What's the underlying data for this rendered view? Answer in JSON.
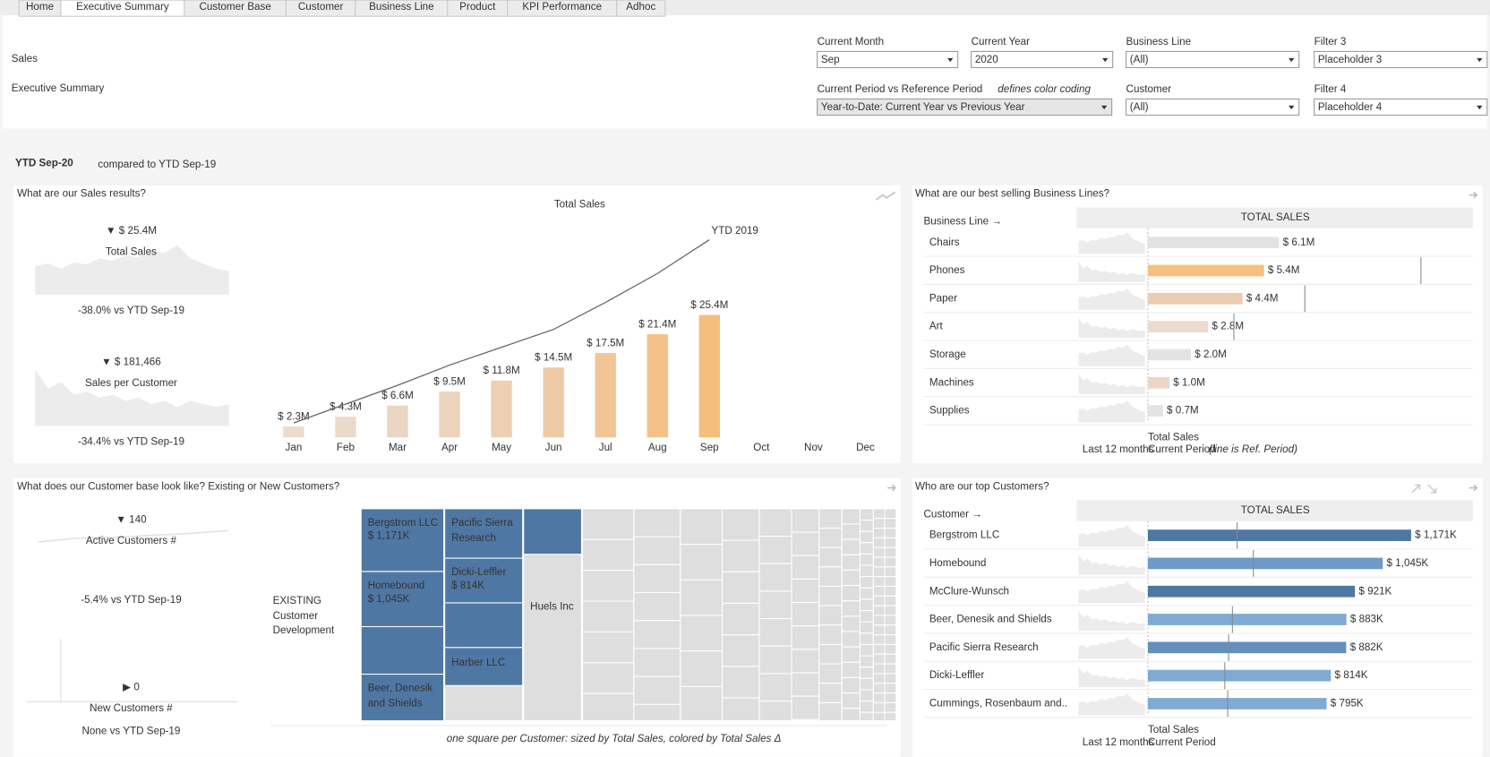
{
  "tabs": [
    "Home",
    "Executive Summary",
    "Customer Base",
    "Customer",
    "Business Line",
    "Product",
    "KPI Performance",
    "Adhoc"
  ],
  "active_tab": 1,
  "header": {
    "breadcrumb": "Sales",
    "title": "Executive Summary"
  },
  "filters": [
    {
      "label": "Current Month",
      "value": "Sep"
    },
    {
      "label": "Current Year",
      "value": "2020"
    },
    {
      "label": "Business Line",
      "value": "(All)"
    },
    {
      "label": "Filter 3",
      "value": "Placeholder 3"
    },
    {
      "label": "Current Period vs Reference Period",
      "note": "defines color coding",
      "value": "Year-to-Date: Current Year vs Previous Year"
    },
    {
      "label": "Customer",
      "value": "(All)"
    },
    {
      "label": "Filter 4",
      "value": "Placeholder 4"
    }
  ],
  "period": {
    "current": "YTD Sep-20",
    "compared": "compared to YTD Sep-19"
  },
  "sales_panel": {
    "title": "What are our Sales results?",
    "kpis": [
      {
        "arrow": "▼",
        "value": "$ 25.4M",
        "label": "Total Sales",
        "delta": "-38.0% vs YTD Sep-19"
      },
      {
        "arrow": "▼",
        "value": "$ 181,466",
        "label": "Sales per Customer",
        "delta": "-34.4% vs YTD Sep-19"
      }
    ],
    "chart_data": {
      "type": "bar",
      "title": "Total Sales",
      "categories": [
        "Jan",
        "Feb",
        "Mar",
        "Apr",
        "May",
        "Jun",
        "Jul",
        "Aug",
        "Sep",
        "Oct",
        "Nov",
        "Dec"
      ],
      "values": [
        2.3,
        4.3,
        6.6,
        9.5,
        11.8,
        14.5,
        17.5,
        21.4,
        25.4,
        null,
        null,
        null
      ],
      "value_labels": [
        "$ 2.3M",
        "$ 4.3M",
        "$ 6.6M",
        "$ 9.5M",
        "$ 11.8M",
        "$ 14.5M",
        "$ 17.5M",
        "$ 21.4M",
        "$ 25.4M",
        null,
        null,
        null
      ],
      "colors": [
        "#ebdccf",
        "#eadacb",
        "#ebd6c3",
        "#ecd3bb",
        "#eecfb2",
        "#efcaa7",
        "#f2c596",
        "#f4c188",
        "#f5be7c",
        null,
        null,
        null
      ],
      "line": {
        "name": "YTD 2019",
        "color": "#666666",
        "values": [
          3.0,
          6.9,
          10.8,
          15.0,
          18.7,
          22.4,
          28.0,
          34.0,
          41.0,
          null,
          null,
          null
        ]
      }
    }
  },
  "business_panel": {
    "title": "What are our best selling Business Lines?",
    "dimension": "Business Line →",
    "column": "TOTAL SALES",
    "footer": {
      "measure": "Total Sales",
      "spark": "Last 12 months",
      "period": "Current Period",
      "note": "(line is Ref. Period)"
    },
    "chart_data": {
      "type": "hbar",
      "categories": [
        "Chairs",
        "Phones",
        "Paper",
        "Art",
        "Storage",
        "Machines",
        "Supplies"
      ],
      "values": [
        6.1,
        5.4,
        4.4,
        2.8,
        2.0,
        1.0,
        0.7
      ],
      "value_labels": [
        "$ 6.1M",
        "$ 5.4M",
        "$ 4.4M",
        "$ 2.8M",
        "$ 2.0M",
        "$ 1.0M",
        "$ 0.7M"
      ],
      "reference": [
        null,
        12.7,
        7.3,
        4.0,
        null,
        null,
        null
      ],
      "colors": [
        "#e3e3e3",
        "#f6c07f",
        "#eaccb1",
        "#ecdccf",
        "#e3e3e3",
        "#ebd6c5",
        "#e3e3e3"
      ]
    }
  },
  "customer_panel": {
    "title": "What does our Customer base look like? Existing or New Customers?",
    "kpis": [
      {
        "arrow": "▼",
        "value": "140",
        "label": "Active Customers #",
        "delta": "-5.4% vs YTD Sep-19"
      },
      {
        "arrow": "▶",
        "value": "0",
        "label": "New Customers #",
        "delta": "None vs YTD Sep-19"
      }
    ],
    "treemap": {
      "segment": "EXISTING",
      "segment_sub": [
        "Customer",
        "Development"
      ],
      "tiles": [
        {
          "name": "Bergstrom LLC",
          "value": 1171,
          "value_label": "$ 1,171K"
        },
        {
          "name": "Homebound",
          "value": 1045,
          "value_label": "$ 1,045K"
        },
        {
          "name": "Beer, Denesik",
          "name2": "and Shields"
        },
        {
          "name": "Pacific Sierra",
          "name2": "Research"
        },
        {
          "name": "Dicki-Leffler",
          "value": 814,
          "value_label": "$ 814K"
        },
        {
          "name": "Harber LLC"
        },
        {
          "name": "Huels Inc"
        }
      ],
      "note": "one square per Customer: sized by Total Sales, colored by Total Sales Δ"
    }
  },
  "top_customers_panel": {
    "title": "Who are our top Customers?",
    "dimension": "Customer →",
    "column": "TOTAL SALES",
    "footer": {
      "measure": "Total Sales",
      "spark": "Last 12 months",
      "period": "Current Period"
    },
    "chart_data": {
      "type": "hbar",
      "categories": [
        "Bergstrom LLC",
        "Homebound",
        "McClure-Wunsch",
        "Beer, Denesik and Shields",
        "Pacific Sierra Research",
        "Dicki-Leffler",
        "Cummings, Rosenbaum and.."
      ],
      "values": [
        1171,
        1045,
        921,
        883,
        882,
        814,
        795
      ],
      "value_labels": [
        "$ 1,171K",
        "$ 1,045K",
        "$ 921K",
        "$ 883K",
        "$ 882K",
        "$ 814K",
        "$ 795K"
      ],
      "reference": [
        397,
        469,
        null,
        376,
        359,
        342,
        355
      ],
      "colors": [
        "#4f77a3",
        "#6d9ac8",
        "#4f77a3",
        "#7eaad4",
        "#6590bd",
        "#7eaad4",
        "#7eaad4"
      ]
    }
  }
}
